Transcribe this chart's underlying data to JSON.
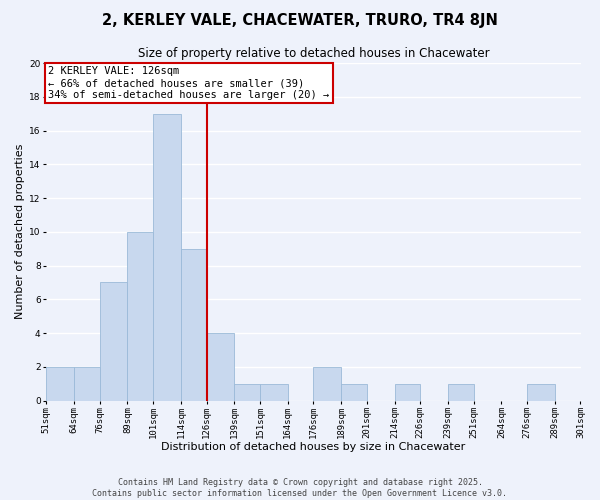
{
  "title": "2, KERLEY VALE, CHACEWATER, TRURO, TR4 8JN",
  "subtitle": "Size of property relative to detached houses in Chacewater",
  "xlabel": "Distribution of detached houses by size in Chacewater",
  "ylabel": "Number of detached properties",
  "bin_edges": [
    51,
    64,
    76,
    89,
    101,
    114,
    126,
    139,
    151,
    164,
    176,
    189,
    201,
    214,
    226,
    239,
    251,
    264,
    276,
    289,
    301
  ],
  "counts": [
    2,
    2,
    7,
    10,
    17,
    9,
    4,
    1,
    1,
    0,
    2,
    1,
    0,
    1,
    0,
    1,
    0,
    0,
    1,
    0
  ],
  "bar_color": "#c8d8ee",
  "bar_edge_color": "#9bbad8",
  "property_value": 126,
  "vline_color": "#cc0000",
  "annotation_text": "2 KERLEY VALE: 126sqm\n← 66% of detached houses are smaller (39)\n34% of semi-detached houses are larger (20) →",
  "annotation_box_facecolor": "white",
  "annotation_box_edgecolor": "#cc0000",
  "ylim": [
    0,
    20
  ],
  "yticks": [
    0,
    2,
    4,
    6,
    8,
    10,
    12,
    14,
    16,
    18,
    20
  ],
  "tick_labels": [
    "51sqm",
    "64sqm",
    "76sqm",
    "89sqm",
    "101sqm",
    "114sqm",
    "126sqm",
    "139sqm",
    "151sqm",
    "164sqm",
    "176sqm",
    "189sqm",
    "201sqm",
    "214sqm",
    "226sqm",
    "239sqm",
    "251sqm",
    "264sqm",
    "276sqm",
    "289sqm",
    "301sqm"
  ],
  "background_color": "#eef2fb",
  "grid_color": "#ffffff",
  "footer_text": "Contains HM Land Registry data © Crown copyright and database right 2025.\nContains public sector information licensed under the Open Government Licence v3.0.",
  "title_fontsize": 10.5,
  "subtitle_fontsize": 8.5,
  "axis_label_fontsize": 8,
  "tick_fontsize": 6.5,
  "annotation_fontsize": 7.5,
  "footer_fontsize": 6
}
